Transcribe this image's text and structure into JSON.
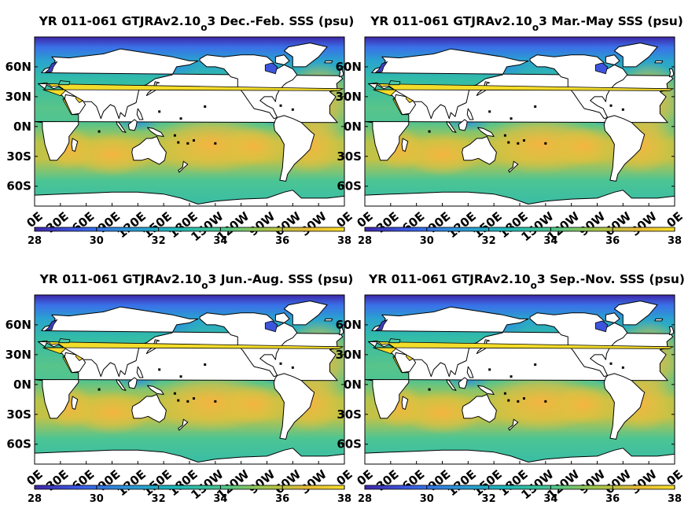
{
  "figure": {
    "colorbar": {
      "ticks": [
        "28",
        "30",
        "32",
        "34",
        "36",
        "38"
      ]
    },
    "lat_labels": [
      "60N",
      "30N",
      "0N",
      "30S",
      "60S"
    ],
    "lon_labels": [
      "0E",
      "30E",
      "60E",
      "90E",
      "120E",
      "150E",
      "180E",
      "150W",
      "120W",
      "90W",
      "60W",
      "30W",
      "0E"
    ],
    "colormap": [
      "#3e26a8",
      "#3a5fe8",
      "#2c96d8",
      "#1eb6b8",
      "#48c690",
      "#a6c548",
      "#e6ba38",
      "#f9e028"
    ],
    "colormap_range": [
      28,
      38
    ],
    "panels": [
      {
        "title_prefix": "YR 011-061 GTJRAv2.10",
        "title_sub": "o",
        "title_suffix": "3 Dec.-Feb. SSS (psu)"
      },
      {
        "title_prefix": "YR 011-061 GTJRAv2.10",
        "title_sub": "o",
        "title_suffix": "3 Mar.-May SSS (psu)"
      },
      {
        "title_prefix": "YR 011-061 GTJRAv2.10",
        "title_sub": "o",
        "title_suffix": "3 Jun.-Aug. SSS (psu)"
      },
      {
        "title_prefix": "YR 011-061 GTJRAv2.10",
        "title_sub": "o",
        "title_suffix": "3 Sep.-Nov. SSS (psu)"
      }
    ]
  }
}
